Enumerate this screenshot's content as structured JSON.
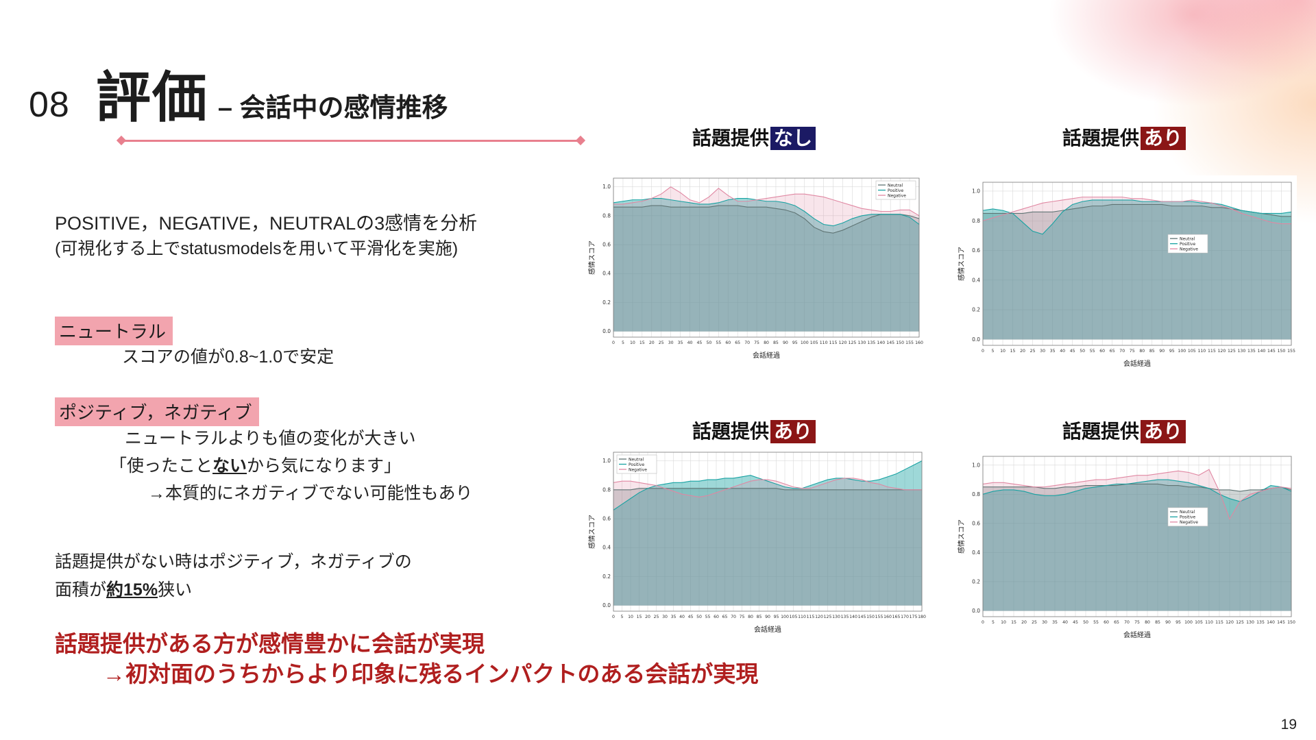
{
  "page": {
    "number": "19"
  },
  "header": {
    "number": "08",
    "title": "評価",
    "subtitle": "– 会話中の感情推移"
  },
  "analysis": {
    "line1": "POSITIVE，NEGATIVE，NEUTRALの3感情を分析",
    "line2": "(可視化する上でstatusmodelsを用いて平滑化を実施)"
  },
  "neutral_block": {
    "label": "ニュートラル",
    "desc": "スコアの値が0.8~1.0で安定"
  },
  "posneg_block": {
    "label": "ポジティブ，ネガティブ",
    "line1": "ニュートラルよりも値の変化が大きい",
    "quote_pre": "「使ったこと",
    "quote_emphasis": "ない",
    "quote_post": "から気になります」",
    "line3": "→本質的にネガティブでない可能性もあり"
  },
  "area_block": {
    "line1": "話題提供がない時はポジティブ，ネガティブの",
    "line2_pre": "面積が",
    "line2_emphasis": "約15%",
    "line2_post": "狭い"
  },
  "conclusion": {
    "line1": "話題提供がある方が感情豊かに会話が実現",
    "line2": "→初対面のうちからより印象に残るインパクトのある会話が実現"
  },
  "colors": {
    "accent_pink": "#f2a4ae",
    "underline_pink": "#e8808e",
    "tag_none_bg": "#1b1a64",
    "tag_yes_bg": "#8b1616",
    "conclusion_red": "#b01f1f",
    "series_neutral": "#5f7474",
    "series_positive": "#17a2a2",
    "series_negative": "#e087a2"
  },
  "chart_data": [
    {
      "type": "line",
      "title_prefix": "話題提供",
      "title_tag": "なし",
      "tag_kind": "none",
      "xlabel": "会話経過",
      "ylabel": "感情スコア",
      "ylim": [
        0.0,
        1.0
      ],
      "x_start": 0,
      "x_step": 5,
      "x_end": 160,
      "legend_pos": "top-right",
      "series": [
        {
          "name": "Neutral",
          "color": "#5f7474",
          "fill_opacity": 0.3,
          "values": [
            0.86,
            0.86,
            0.86,
            0.86,
            0.87,
            0.87,
            0.86,
            0.86,
            0.86,
            0.86,
            0.86,
            0.87,
            0.87,
            0.87,
            0.86,
            0.86,
            0.86,
            0.85,
            0.84,
            0.82,
            0.78,
            0.72,
            0.69,
            0.68,
            0.7,
            0.73,
            0.76,
            0.79,
            0.81,
            0.81,
            0.81,
            0.8,
            0.78
          ]
        },
        {
          "name": "Positive",
          "color": "#17a2a2",
          "fill_opacity": 0.42,
          "values": [
            0.89,
            0.9,
            0.91,
            0.91,
            0.92,
            0.92,
            0.91,
            0.9,
            0.89,
            0.88,
            0.88,
            0.89,
            0.91,
            0.92,
            0.92,
            0.91,
            0.9,
            0.9,
            0.89,
            0.87,
            0.83,
            0.78,
            0.74,
            0.73,
            0.75,
            0.78,
            0.8,
            0.81,
            0.81,
            0.81,
            0.81,
            0.79,
            0.74
          ]
        },
        {
          "name": "Negative",
          "color": "#e087a2",
          "fill_opacity": 0.22,
          "values": [
            0.88,
            0.88,
            0.89,
            0.9,
            0.92,
            0.95,
            1.0,
            0.96,
            0.91,
            0.89,
            0.93,
            0.99,
            0.94,
            0.9,
            0.9,
            0.91,
            0.92,
            0.93,
            0.94,
            0.95,
            0.95,
            0.94,
            0.93,
            0.91,
            0.89,
            0.87,
            0.85,
            0.84,
            0.83,
            0.83,
            0.84,
            0.84,
            0.8
          ]
        }
      ]
    },
    {
      "type": "line",
      "title_prefix": "話題提供",
      "title_tag": "あり",
      "tag_kind": "yes",
      "xlabel": "会話経過",
      "ylabel": "感情スコア",
      "ylim": [
        0.0,
        1.0
      ],
      "x_start": 0,
      "x_step": 5,
      "x_end": 155,
      "legend_pos": "mid-right",
      "series": [
        {
          "name": "Neutral",
          "color": "#5f7474",
          "fill_opacity": 0.3,
          "values": [
            0.85,
            0.85,
            0.85,
            0.85,
            0.85,
            0.86,
            0.86,
            0.86,
            0.87,
            0.88,
            0.89,
            0.9,
            0.9,
            0.91,
            0.91,
            0.91,
            0.91,
            0.91,
            0.91,
            0.9,
            0.9,
            0.9,
            0.9,
            0.89,
            0.89,
            0.88,
            0.87,
            0.86,
            0.85,
            0.84,
            0.83,
            0.83
          ]
        },
        {
          "name": "Positive",
          "color": "#17a2a2",
          "fill_opacity": 0.42,
          "values": [
            0.87,
            0.88,
            0.87,
            0.85,
            0.79,
            0.73,
            0.71,
            0.78,
            0.86,
            0.91,
            0.93,
            0.94,
            0.94,
            0.94,
            0.94,
            0.94,
            0.93,
            0.93,
            0.93,
            0.93,
            0.93,
            0.93,
            0.92,
            0.92,
            0.91,
            0.89,
            0.87,
            0.86,
            0.85,
            0.85,
            0.85,
            0.86
          ]
        },
        {
          "name": "Negative",
          "color": "#e087a2",
          "fill_opacity": 0.22,
          "values": [
            0.8,
            0.82,
            0.84,
            0.86,
            0.88,
            0.9,
            0.92,
            0.93,
            0.94,
            0.95,
            0.96,
            0.96,
            0.96,
            0.96,
            0.96,
            0.95,
            0.95,
            0.94,
            0.93,
            0.93,
            0.93,
            0.94,
            0.93,
            0.92,
            0.9,
            0.88,
            0.85,
            0.83,
            0.81,
            0.79,
            0.78,
            0.78
          ]
        }
      ]
    },
    {
      "type": "line",
      "title_prefix": "話題提供",
      "title_tag": "あり",
      "tag_kind": "yes",
      "xlabel": "会話経過",
      "ylabel": "感情スコア",
      "ylim": [
        0.0,
        1.0
      ],
      "x_start": 0,
      "x_step": 5,
      "x_end": 180,
      "legend_pos": "top-left",
      "series": [
        {
          "name": "Neutral",
          "color": "#5f7474",
          "fill_opacity": 0.3,
          "values": [
            0.8,
            0.8,
            0.8,
            0.81,
            0.81,
            0.81,
            0.81,
            0.81,
            0.81,
            0.81,
            0.81,
            0.81,
            0.81,
            0.81,
            0.81,
            0.81,
            0.81,
            0.81,
            0.81,
            0.81,
            0.8,
            0.8,
            0.8,
            0.8,
            0.8,
            0.8,
            0.8,
            0.8,
            0.8,
            0.8,
            0.8,
            0.8,
            0.8,
            0.8,
            0.8,
            0.8,
            0.8
          ]
        },
        {
          "name": "Positive",
          "color": "#17a2a2",
          "fill_opacity": 0.42,
          "values": [
            0.66,
            0.7,
            0.74,
            0.78,
            0.81,
            0.83,
            0.84,
            0.85,
            0.85,
            0.86,
            0.86,
            0.87,
            0.87,
            0.88,
            0.88,
            0.89,
            0.9,
            0.88,
            0.86,
            0.84,
            0.82,
            0.81,
            0.81,
            0.83,
            0.85,
            0.87,
            0.88,
            0.88,
            0.87,
            0.86,
            0.86,
            0.87,
            0.89,
            0.91,
            0.94,
            0.97,
            1.0
          ]
        },
        {
          "name": "Negative",
          "color": "#e087a2",
          "fill_opacity": 0.22,
          "values": [
            0.85,
            0.86,
            0.86,
            0.85,
            0.84,
            0.83,
            0.81,
            0.79,
            0.77,
            0.76,
            0.75,
            0.76,
            0.78,
            0.8,
            0.82,
            0.84,
            0.86,
            0.87,
            0.87,
            0.86,
            0.84,
            0.82,
            0.81,
            0.81,
            0.83,
            0.85,
            0.87,
            0.88,
            0.88,
            0.87,
            0.85,
            0.84,
            0.82,
            0.81,
            0.8,
            0.8,
            0.8
          ]
        }
      ]
    },
    {
      "type": "line",
      "title_prefix": "話題提供",
      "title_tag": "あり",
      "tag_kind": "yes",
      "xlabel": "会話経過",
      "ylabel": "感情スコア",
      "ylim": [
        0.0,
        1.0
      ],
      "x_start": 0,
      "x_step": 5,
      "x_end": 150,
      "legend_pos": "mid-right",
      "series": [
        {
          "name": "Neutral",
          "color": "#5f7474",
          "fill_opacity": 0.3,
          "values": [
            0.85,
            0.85,
            0.85,
            0.85,
            0.85,
            0.85,
            0.84,
            0.84,
            0.85,
            0.85,
            0.86,
            0.86,
            0.86,
            0.86,
            0.87,
            0.87,
            0.87,
            0.87,
            0.86,
            0.86,
            0.85,
            0.85,
            0.84,
            0.83,
            0.83,
            0.82,
            0.83,
            0.83,
            0.84,
            0.85,
            0.83
          ]
        },
        {
          "name": "Positive",
          "color": "#17a2a2",
          "fill_opacity": 0.42,
          "values": [
            0.8,
            0.82,
            0.83,
            0.83,
            0.82,
            0.8,
            0.79,
            0.79,
            0.8,
            0.82,
            0.84,
            0.85,
            0.86,
            0.87,
            0.87,
            0.88,
            0.89,
            0.9,
            0.9,
            0.89,
            0.88,
            0.86,
            0.84,
            0.8,
            0.77,
            0.75,
            0.78,
            0.82,
            0.86,
            0.85,
            0.82
          ]
        },
        {
          "name": "Negative",
          "color": "#e087a2",
          "fill_opacity": 0.22,
          "values": [
            0.87,
            0.88,
            0.88,
            0.87,
            0.86,
            0.85,
            0.85,
            0.86,
            0.87,
            0.88,
            0.89,
            0.9,
            0.9,
            0.91,
            0.92,
            0.93,
            0.93,
            0.94,
            0.95,
            0.96,
            0.95,
            0.93,
            0.97,
            0.82,
            0.63,
            0.75,
            0.8,
            0.82,
            0.84,
            0.85,
            0.84
          ]
        }
      ]
    }
  ]
}
